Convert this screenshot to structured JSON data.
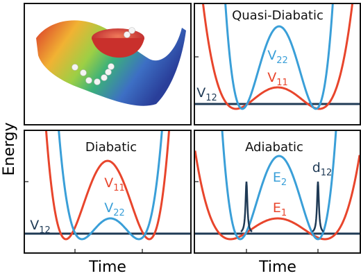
{
  "y_label": "Energy",
  "x_labels": [
    "Time",
    "Time"
  ],
  "panels": [
    {
      "title": "Quasi-Diabatic",
      "labels": [
        {
          "base": "V",
          "sub": "22"
        },
        {
          "base": "V",
          "sub": "11"
        },
        {
          "base": "V",
          "sub": "12"
        }
      ]
    },
    {
      "title": "Diabatic",
      "labels": [
        {
          "base": "V",
          "sub": "11"
        },
        {
          "base": "V",
          "sub": "22"
        },
        {
          "base": "V",
          "sub": "12"
        }
      ]
    },
    {
      "title": "Adiabatic",
      "labels": [
        {
          "base": "E",
          "sub": "2"
        },
        {
          "base": "E",
          "sub": "1"
        },
        {
          "base": "d",
          "sub": "12"
        }
      ]
    }
  ]
}
